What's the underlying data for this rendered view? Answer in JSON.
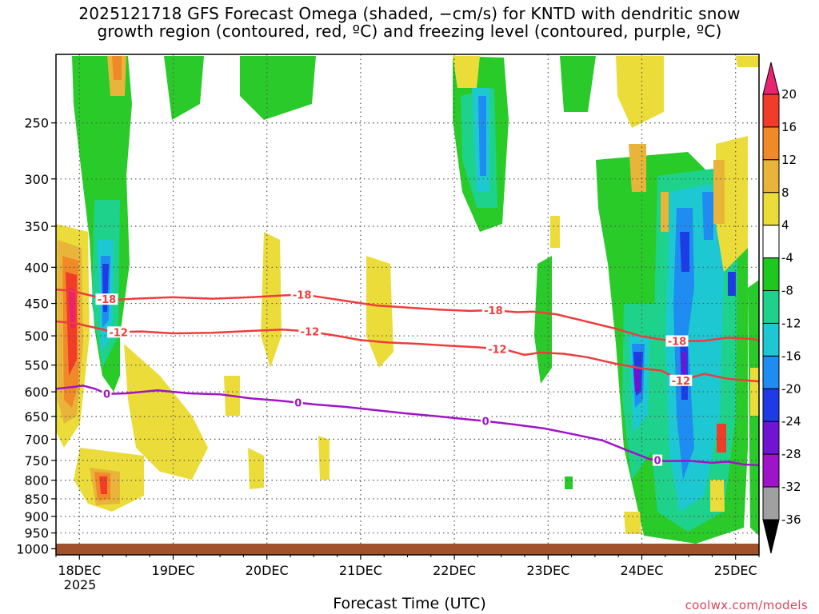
{
  "chart_data": {
    "type": "heatmap",
    "title_line1": "2025121718 GFS Forecast Omega (shaded, −cm/s) for KNTD with dendritic snow",
    "title_line2": "growth region (contoured, red, ºC) and freezing level (contoured, purple, ºC)",
    "xlabel": "Forecast Time (UTC)",
    "ylabel": "",
    "y_scale": "log-pressure",
    "ylim": [
      1020,
      200
    ],
    "y_ticks": [
      {
        "value": 250,
        "label": "250"
      },
      {
        "value": 300,
        "label": "300"
      },
      {
        "value": 350,
        "label": "350"
      },
      {
        "value": 400,
        "label": "400"
      },
      {
        "value": 450,
        "label": "450"
      },
      {
        "value": 500,
        "label": "500"
      },
      {
        "value": 550,
        "label": "550"
      },
      {
        "value": 600,
        "label": "600"
      },
      {
        "value": 650,
        "label": "650"
      },
      {
        "value": 700,
        "label": "700"
      },
      {
        "value": 750,
        "label": "750"
      },
      {
        "value": 800,
        "label": "800"
      },
      {
        "value": 850,
        "label": "850"
      },
      {
        "value": 900,
        "label": "900"
      },
      {
        "value": 950,
        "label": "950"
      },
      {
        "value": 1000,
        "label": "1000"
      }
    ],
    "x_ticks": [
      {
        "value": 6,
        "label": "18DEC"
      },
      {
        "value": 30,
        "label": "19DEC"
      },
      {
        "value": 54,
        "label": "20DEC"
      },
      {
        "value": 78,
        "label": "21DEC"
      },
      {
        "value": 102,
        "label": "22DEC"
      },
      {
        "value": 126,
        "label": "23DEC"
      },
      {
        "value": 150,
        "label": "24DEC"
      },
      {
        "value": 174,
        "label": "25DEC"
      }
    ],
    "x_sublabel": "2025",
    "xlim": [
      0,
      180
    ],
    "grid": true,
    "colorbar": {
      "levels": [
        {
          "label": "20",
          "color": "#e8236f"
        },
        {
          "label": "16",
          "color": "#f23c2a"
        },
        {
          "label": "12",
          "color": "#f08a28"
        },
        {
          "label": "8",
          "color": "#e8b43a"
        },
        {
          "label": "4",
          "color": "#ecdc3a"
        },
        {
          "label": "-4",
          "color": "#ffffff"
        },
        {
          "label": "-8",
          "color": "#1ec81e"
        },
        {
          "label": "-12",
          "color": "#1ed28c"
        },
        {
          "label": "-16",
          "color": "#1ec8d2"
        },
        {
          "label": "-20",
          "color": "#1e8cf0"
        },
        {
          "label": "-24",
          "color": "#1e3ce6"
        },
        {
          "label": "-28",
          "color": "#6e14d2"
        },
        {
          "label": "-32",
          "color": "#a014c8"
        },
        {
          "label": "-36",
          "color": "#a0a0a0"
        }
      ],
      "end_low_color": "#000000"
    },
    "contours": [
      {
        "name": "-18",
        "color": "#ef3c3c",
        "label_x": [
          13,
          63,
          112,
          159
        ],
        "points": [
          [
            0,
            430
          ],
          [
            4,
            432
          ],
          [
            7,
            436
          ],
          [
            10,
            440
          ],
          [
            14,
            445
          ],
          [
            20,
            443
          ],
          [
            30,
            441
          ],
          [
            40,
            443
          ],
          [
            50,
            441
          ],
          [
            56,
            439
          ],
          [
            63,
            437
          ],
          [
            68,
            441
          ],
          [
            75,
            447
          ],
          [
            82,
            453
          ],
          [
            90,
            456
          ],
          [
            98,
            459
          ],
          [
            106,
            461
          ],
          [
            112,
            460
          ],
          [
            118,
            463
          ],
          [
            122,
            462
          ],
          [
            128,
            466
          ],
          [
            135,
            476
          ],
          [
            143,
            488
          ],
          [
            150,
            501
          ],
          [
            155,
            506
          ],
          [
            160,
            509
          ],
          [
            166,
            508
          ],
          [
            172,
            503
          ],
          [
            178,
            505
          ],
          [
            180,
            507
          ]
        ]
      },
      {
        "name": "-12",
        "color": "#ef3c3c",
        "label_x": [
          16,
          65,
          113,
          160
        ],
        "points": [
          [
            0,
            477
          ],
          [
            5,
            480
          ],
          [
            10,
            487
          ],
          [
            15,
            494
          ],
          [
            22,
            493
          ],
          [
            30,
            496
          ],
          [
            40,
            495
          ],
          [
            50,
            492
          ],
          [
            58,
            490
          ],
          [
            65,
            493
          ],
          [
            72,
            500
          ],
          [
            78,
            507
          ],
          [
            85,
            511
          ],
          [
            92,
            513
          ],
          [
            100,
            516
          ],
          [
            108,
            519
          ],
          [
            115,
            523
          ],
          [
            120,
            532
          ],
          [
            124,
            528
          ],
          [
            130,
            530
          ],
          [
            136,
            536
          ],
          [
            143,
            547
          ],
          [
            150,
            556
          ],
          [
            155,
            560
          ],
          [
            160,
            578
          ],
          [
            166,
            566
          ],
          [
            172,
            575
          ],
          [
            180,
            580
          ]
        ]
      },
      {
        "name": "0",
        "color": "#a014c8",
        "label_x": [
          13,
          62,
          110,
          154
        ],
        "points": [
          [
            0,
            594
          ],
          [
            4,
            591
          ],
          [
            7,
            588
          ],
          [
            10,
            594
          ],
          [
            13,
            604
          ],
          [
            18,
            603
          ],
          [
            26,
            597
          ],
          [
            34,
            603
          ],
          [
            42,
            605
          ],
          [
            50,
            613
          ],
          [
            58,
            618
          ],
          [
            66,
            625
          ],
          [
            74,
            630
          ],
          [
            82,
            637
          ],
          [
            90,
            644
          ],
          [
            98,
            650
          ],
          [
            105,
            656
          ],
          [
            110,
            660
          ],
          [
            118,
            668
          ],
          [
            125,
            676
          ],
          [
            132,
            688
          ],
          [
            140,
            703
          ],
          [
            146,
            725
          ],
          [
            152,
            747
          ],
          [
            156,
            752
          ],
          [
            162,
            751
          ],
          [
            168,
            756
          ],
          [
            172,
            753
          ],
          [
            176,
            760
          ],
          [
            180,
            762
          ]
        ]
      }
    ]
  },
  "credit": "coolwx.com/models"
}
